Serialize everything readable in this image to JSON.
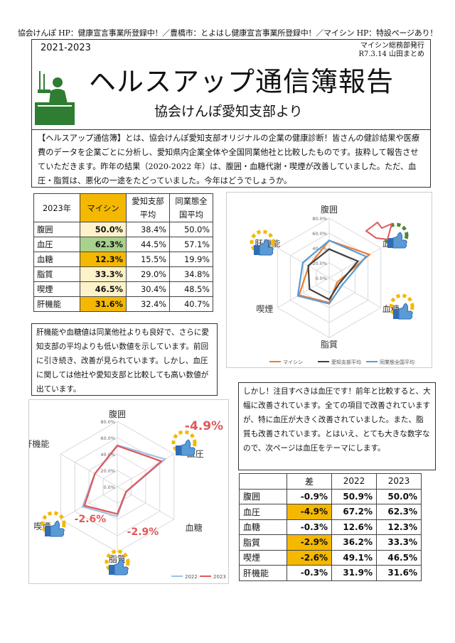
{
  "top_line": "協会けんぽ HP：健康宣言事業所登録中！／豊橋市：とよはし健康宣言事業所登録中！／マイシン HP：特設ページあり！",
  "header": {
    "year_range": "2021-2023",
    "issuer_line1": "マイシン総務部発行",
    "issuer_line2": "R7.3.14 山田まとめ",
    "title": "ヘルスアップ通信簿報告",
    "subtitle": "協会けんぽ愛知支部より"
  },
  "intro_text": "【ヘルスアップ通信簿】とは、協会けんぽ愛知支部オリジナルの企業の健康診断！皆さんの健診結果や医療費のデータを企業ごとに分析し、愛知県内企業全体や全国同業他社と比較したものです。抜粋して報告させていただきます。昨年の結果（2020-2022 年）は、腹囲・血糖代謝・喫煙が改善していました。ただ、血圧・脂質は、悪化の一途をたどっていました。今年はどうでしょうか。",
  "table1": {
    "headers": [
      "2023年",
      "マイシン",
      "愛知支部\n平均",
      "同業態全\n国平均"
    ],
    "rows": [
      {
        "item": "腹囲",
        "maishin": "50.0%",
        "aichi": "38.4%",
        "national": "50.0%",
        "color": "#fdf2c9"
      },
      {
        "item": "血圧",
        "maishin": "62.3%",
        "aichi": "44.5%",
        "national": "57.1%",
        "color": "#a9d18e"
      },
      {
        "item": "血糖",
        "maishin": "12.3%",
        "aichi": "15.5%",
        "national": "19.9%",
        "color": "#f5b800"
      },
      {
        "item": "脂質",
        "maishin": "33.3%",
        "aichi": "29.0%",
        "national": "34.8%",
        "color": "#fdf2c9"
      },
      {
        "item": "喫煙",
        "maishin": "46.5%",
        "aichi": "30.4%",
        "national": "48.5%",
        "color": "#fdf2c9"
      },
      {
        "item": "肝機能",
        "maishin": "31.6%",
        "aichi": "32.4%",
        "national": "40.7%",
        "color": "#f5b800"
      }
    ]
  },
  "comment1": "肝機能や血糖値は同業他社よりも良好で、さらに愛知支部の平均よりも低い数値を示しています。前回に引き続き、改善が見られています。しかし、血圧に関しては他社や愛知支部と比較しても高い数値が出ています。",
  "comment2": "しかし！注目すべきは血圧です！前年と比較すると、大幅に改善されています。全ての項目で改善されていますが、特に血圧が大きく改善されていました。また、脂質も改善されています。とはいえ、とても大きな数字なので、次ページは血圧をテーマにします。",
  "table2": {
    "headers": [
      "",
      "差",
      "2022",
      "2023"
    ],
    "rows": [
      {
        "item": "腹囲",
        "diff": "-0.9%",
        "y2022": "50.9%",
        "y2023": "50.0%",
        "highlight": false
      },
      {
        "item": "血圧",
        "diff": "-4.9%",
        "y2022": "67.2%",
        "y2023": "62.3%",
        "highlight": true
      },
      {
        "item": "血糖",
        "diff": "-0.3%",
        "y2022": "12.6%",
        "y2023": "12.3%",
        "highlight": false
      },
      {
        "item": "脂質",
        "diff": "-2.9%",
        "y2022": "36.2%",
        "y2023": "33.3%",
        "highlight": true
      },
      {
        "item": "喫煙",
        "diff": "-2.6%",
        "y2022": "49.1%",
        "y2023": "46.5%",
        "highlight": true
      },
      {
        "item": "肝機能",
        "diff": "-0.3%",
        "y2022": "31.9%",
        "y2023": "31.6%",
        "highlight": false
      }
    ]
  },
  "colors": {
    "orange": "#ed7d31",
    "blue": "#5b9bd5",
    "gray": "#404040",
    "red": "#e15759",
    "light_blue": "#9dc3e6",
    "yellow": "#f5b800",
    "green": "#548235"
  },
  "chart_data": [
    {
      "type": "radar",
      "categories": [
        "腹囲",
        "血圧",
        "血糖",
        "脂質",
        "喫煙",
        "肝機能"
      ],
      "ticks": [
        "80.0%",
        "60.0%",
        "40.0%",
        "20.0%",
        "0.0%"
      ],
      "ylim": [
        0,
        80
      ],
      "series": [
        {
          "name": "マイシン",
          "values": [
            50.0,
            62.3,
            12.3,
            33.3,
            46.5,
            31.6
          ],
          "color": "#ed7d31"
        },
        {
          "name": "愛知支部平均",
          "values": [
            38.4,
            44.5,
            15.5,
            29.0,
            30.4,
            32.4
          ],
          "color": "#404040"
        },
        {
          "name": "同業態全国平均",
          "values": [
            50.0,
            57.1,
            19.9,
            34.8,
            48.5,
            40.7
          ],
          "color": "#5b9bd5"
        }
      ],
      "legend": "bottom"
    },
    {
      "type": "radar",
      "categories": [
        "腹囲",
        "血圧",
        "血糖",
        "脂質",
        "喫煙",
        "肝機能"
      ],
      "ticks": [
        "80.0%",
        "60.0%",
        "40.0%",
        "20.0%",
        "0.0%"
      ],
      "ylim": [
        0,
        80
      ],
      "series": [
        {
          "name": "2022",
          "values": [
            50.9,
            67.2,
            12.6,
            36.2,
            49.1,
            31.9
          ],
          "color": "#9dc3e6"
        },
        {
          "name": "2023",
          "values": [
            50.0,
            62.3,
            12.3,
            33.3,
            46.5,
            31.6
          ],
          "color": "#e15759"
        }
      ],
      "annotations": [
        "-4.9%",
        "-2.9%",
        "-2.6%"
      ],
      "legend": "bottom"
    }
  ]
}
